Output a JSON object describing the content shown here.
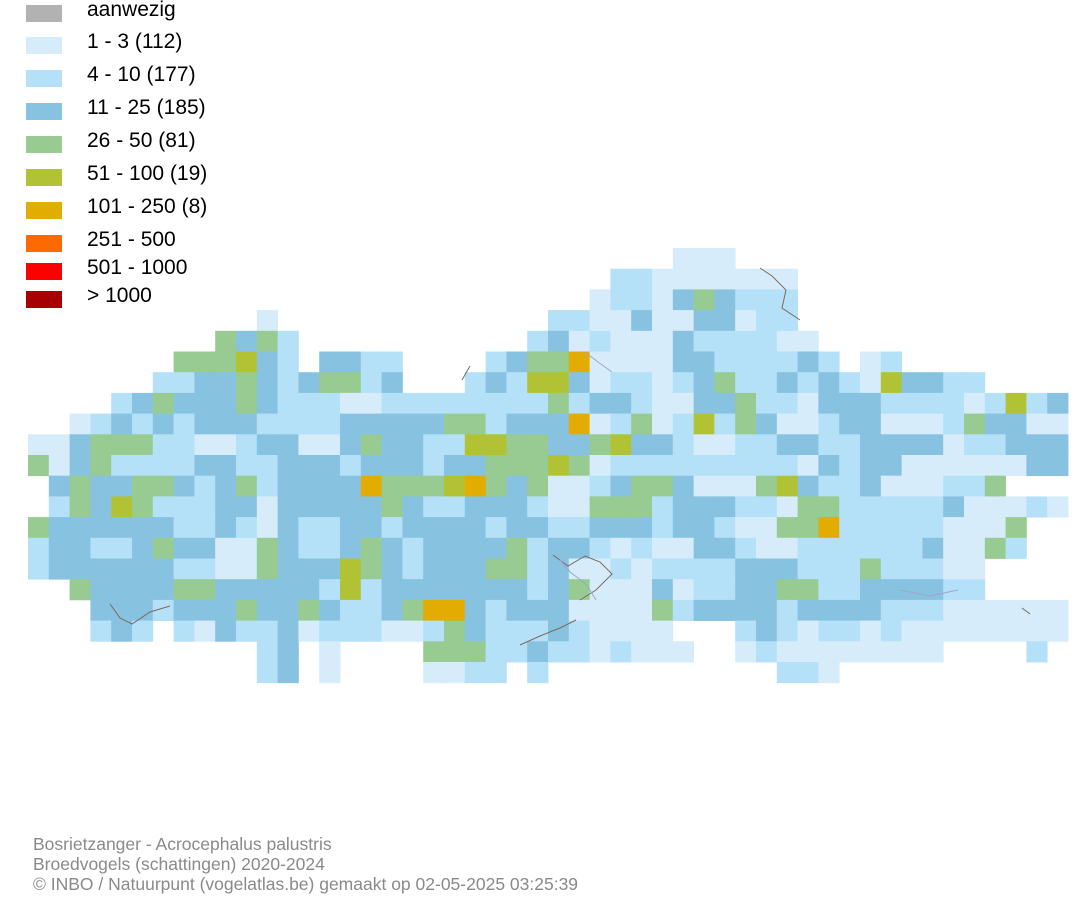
{
  "legend": {
    "items": [
      {
        "label": "aanwezig",
        "color": "#b2b2b2"
      },
      {
        "label": "1 - 3 (112)",
        "color": "#d6ecfb"
      },
      {
        "label": "4 - 10 (177)",
        "color": "#b4e1f8"
      },
      {
        "label": "11 - 25 (185)",
        "color": "#88c2e1"
      },
      {
        "label": "26 - 50 (81)",
        "color": "#97cb91"
      },
      {
        "label": "51 - 100 (19)",
        "color": "#b2c235"
      },
      {
        "label": "101 - 250 (8)",
        "color": "#e2ac00"
      },
      {
        "label": "251 - 500",
        "color": "#ff6a00"
      },
      {
        "label": "501 - 1000",
        "color": "#ff0000"
      },
      {
        "label": "> 1000",
        "color": "#a80000"
      }
    ]
  },
  "footer": {
    "line1": "Bosrietzanger - Acrocephalus palustris",
    "line2": "Broedvogels (schattingen) 2020-2024",
    "line3": "© INBO / Natuurpunt (vogelatlas.be) gemaakt op 02-05-2025 03:25:39"
  }
}
